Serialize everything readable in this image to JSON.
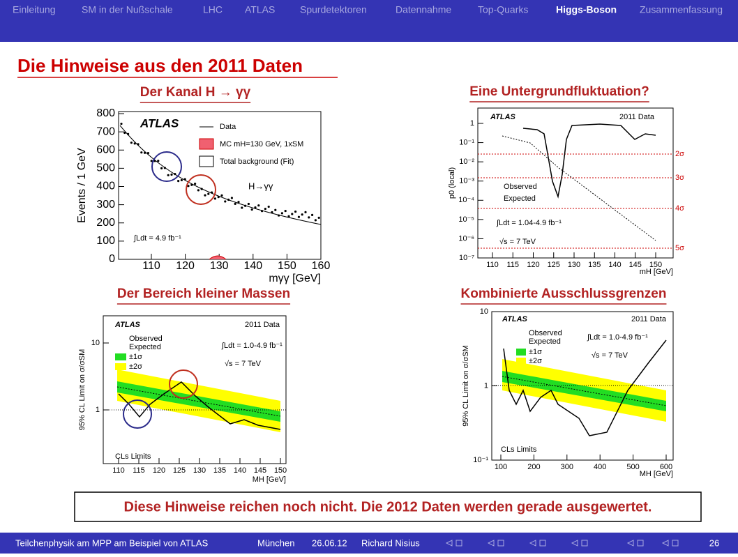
{
  "nav": {
    "items": [
      "Einleitung",
      "SM in der Nußschale",
      "LHC",
      "ATLAS",
      "Spurdetektoren",
      "Datennahme",
      "Top-Quarks",
      "Higgs-Boson",
      "Zusammenfassung"
    ],
    "active": 7
  },
  "title": "Die Hinweise aus den 2011 Daten",
  "panels": [
    {
      "heading": "Der Kanal H → γγ",
      "ylabel": "Events / 1 GeV",
      "xlabel": "mγγ [GeV]",
      "yticks": [
        "0",
        "100",
        "200",
        "300",
        "400",
        "500",
        "600",
        "700",
        "800"
      ],
      "xticks": [
        "110",
        "120",
        "130",
        "140",
        "150",
        "160"
      ],
      "texts": [
        "ATLAS",
        "Data",
        "MC mH=130 GeV, 1xSM",
        "Total background (Fit)",
        "H→γγ",
        "∫Ldt = 4.9 fb⁻¹"
      ]
    },
    {
      "heading": "Eine Untergrundfluktuation?",
      "ylabel": "p0 (local)",
      "xlabel": "mH [GeV]",
      "yticks": [
        "10⁻⁷",
        "10⁻⁶",
        "10⁻⁵",
        "10⁻⁴",
        "10⁻³",
        "10⁻²",
        "10⁻¹",
        "1"
      ],
      "xticks": [
        "110",
        "115",
        "120",
        "125",
        "130",
        "135",
        "140",
        "145",
        "150"
      ],
      "sigmas": [
        "2σ",
        "3σ",
        "4σ",
        "5σ"
      ],
      "texts": [
        "ATLAS",
        "2011 Data",
        "Observed",
        "Expected",
        "∫Ldt = 1.04-4.9 fb⁻¹",
        "√s = 7 TeV"
      ]
    },
    {
      "heading": "Der Bereich kleiner Massen",
      "ylabel": "95% CL Limit on σ/σSM",
      "xlabel": "MH [GeV]",
      "yticks": [
        "1",
        "10"
      ],
      "xticks": [
        "110",
        "115",
        "120",
        "125",
        "130",
        "135",
        "140",
        "145",
        "150"
      ],
      "texts": [
        "ATLAS",
        "2011 Data",
        "Observed",
        "Expected",
        "±1σ",
        "±2σ",
        "∫Ldt = 1.0-4.9 fb⁻¹",
        "√s = 7 TeV",
        "CLs Limits"
      ]
    },
    {
      "heading": "Kombinierte Ausschlussgrenzen",
      "ylabel": "95% CL Limit on σ/σSM",
      "xlabel": "MH [GeV]",
      "yticks": [
        "10⁻¹",
        "1",
        "10"
      ],
      "xticks": [
        "100",
        "200",
        "300",
        "400",
        "500",
        "600"
      ],
      "texts": [
        "ATLAS",
        "2011 Data",
        "Observed",
        "Expected",
        "±1σ",
        "±2σ",
        "∫Ldt = 1.0-4.9 fb⁻¹",
        "√s = 7 TeV",
        "CLs Limits"
      ]
    }
  ],
  "conclusion": "Diese Hinweise reichen noch nicht. Die 2012 Daten werden gerade ausgewertet.",
  "footer": {
    "items": [
      "Teilchenphysik am MPP am Beispiel von ATLAS",
      "München",
      "26.06.12",
      "Richard Nisius"
    ],
    "page": "26"
  }
}
